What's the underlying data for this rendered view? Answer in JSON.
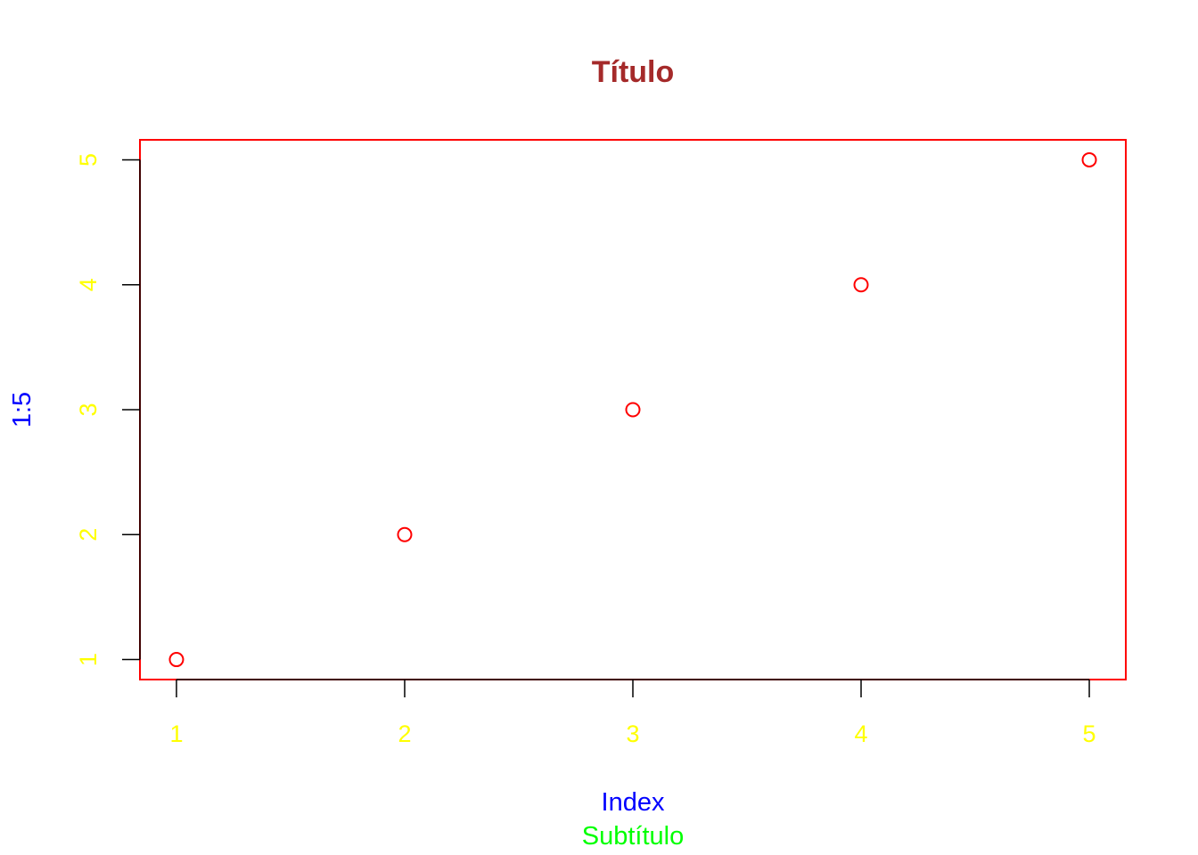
{
  "chart_data": {
    "type": "scatter",
    "title": "Título",
    "subtitle": "Subtítulo",
    "xlabel": "Index",
    "ylabel": "1:5",
    "x": [
      1,
      2,
      3,
      4,
      5
    ],
    "y": [
      1,
      2,
      3,
      4,
      5
    ],
    "x_ticks": [
      "1",
      "2",
      "3",
      "4",
      "5"
    ],
    "y_ticks": [
      "1",
      "2",
      "3",
      "4",
      "5"
    ],
    "xlim": [
      0.84,
      5.16
    ],
    "ylim": [
      0.84,
      5.16
    ],
    "grid": false,
    "colors": {
      "title": "#a52a2a",
      "subtitle": "#00ff00",
      "axis_labels": "#0000ff",
      "tick_labels": "#ffff00",
      "points": "#ff0000",
      "box": "#ff0000",
      "ticks": "#000000"
    }
  }
}
